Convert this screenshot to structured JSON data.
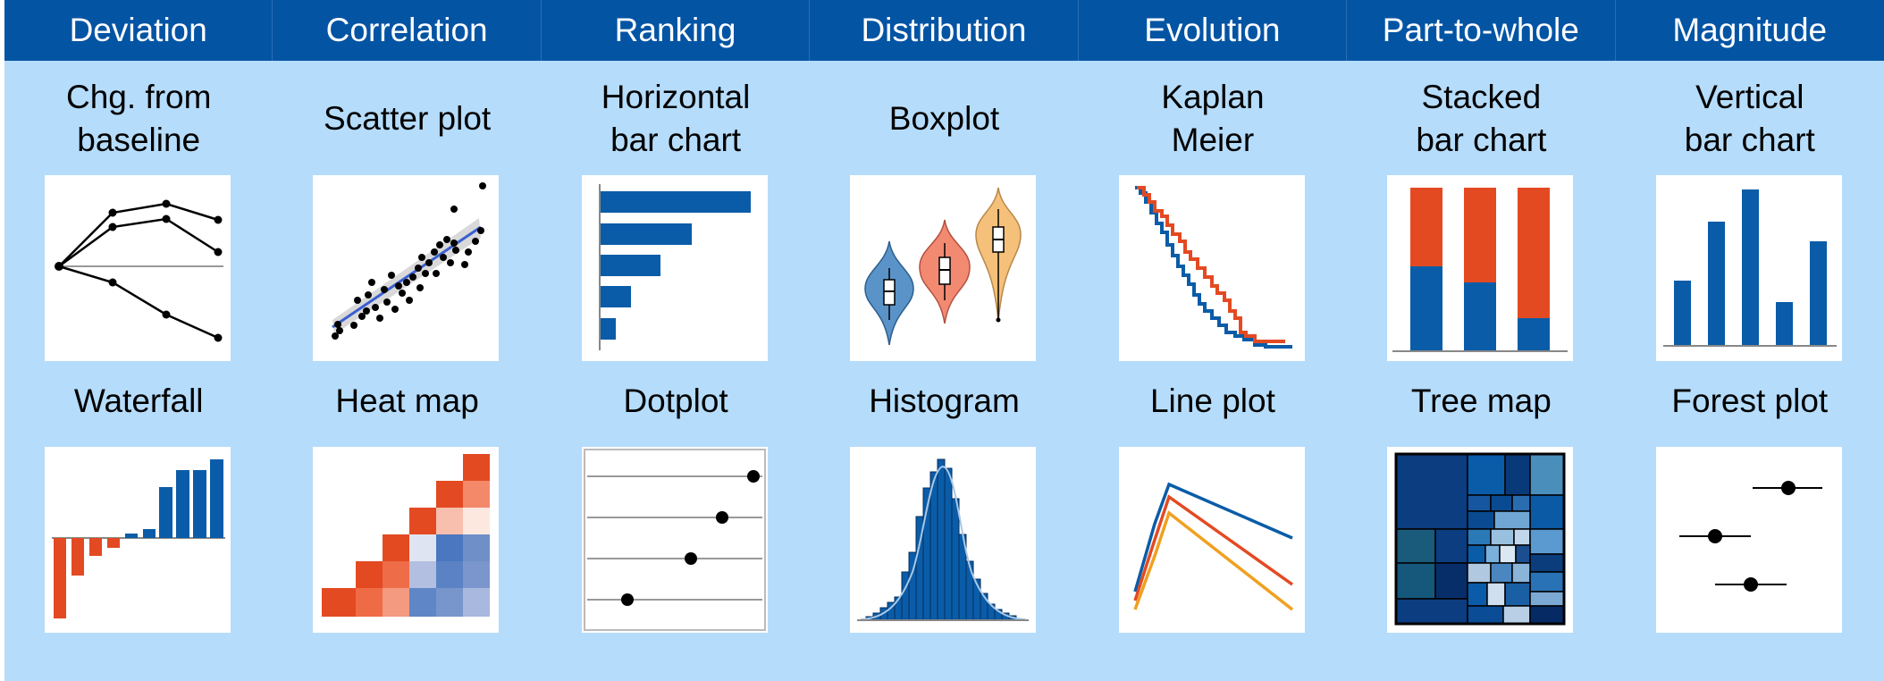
{
  "categories": [
    {
      "label": "Deviation",
      "charts": [
        "Chg. from\nbaseline",
        "Waterfall"
      ]
    },
    {
      "label": "Correlation",
      "charts": [
        "Scatter plot",
        "Heat map"
      ]
    },
    {
      "label": "Ranking",
      "charts": [
        "Horizontal\nbar chart",
        "Dotplot"
      ]
    },
    {
      "label": "Distribution",
      "charts": [
        "Boxplot",
        "Histogram"
      ]
    },
    {
      "label": "Evolution",
      "charts": [
        "Kaplan\nMeier",
        "Line plot"
      ]
    },
    {
      "label": "Part-to-whole",
      "charts": [
        "Stacked\nbar chart",
        "Tree map"
      ]
    },
    {
      "label": "Magnitude",
      "charts": [
        "Vertical\nbar chart",
        "Forest plot"
      ]
    }
  ],
  "colors": {
    "header": "#0454a4",
    "background": "#b5dcfb",
    "blue": "#0a5ca8",
    "red": "#e34a22",
    "salmon": "#f08a6c",
    "yellow": "#f5be6a",
    "orange": "#f0a020"
  }
}
